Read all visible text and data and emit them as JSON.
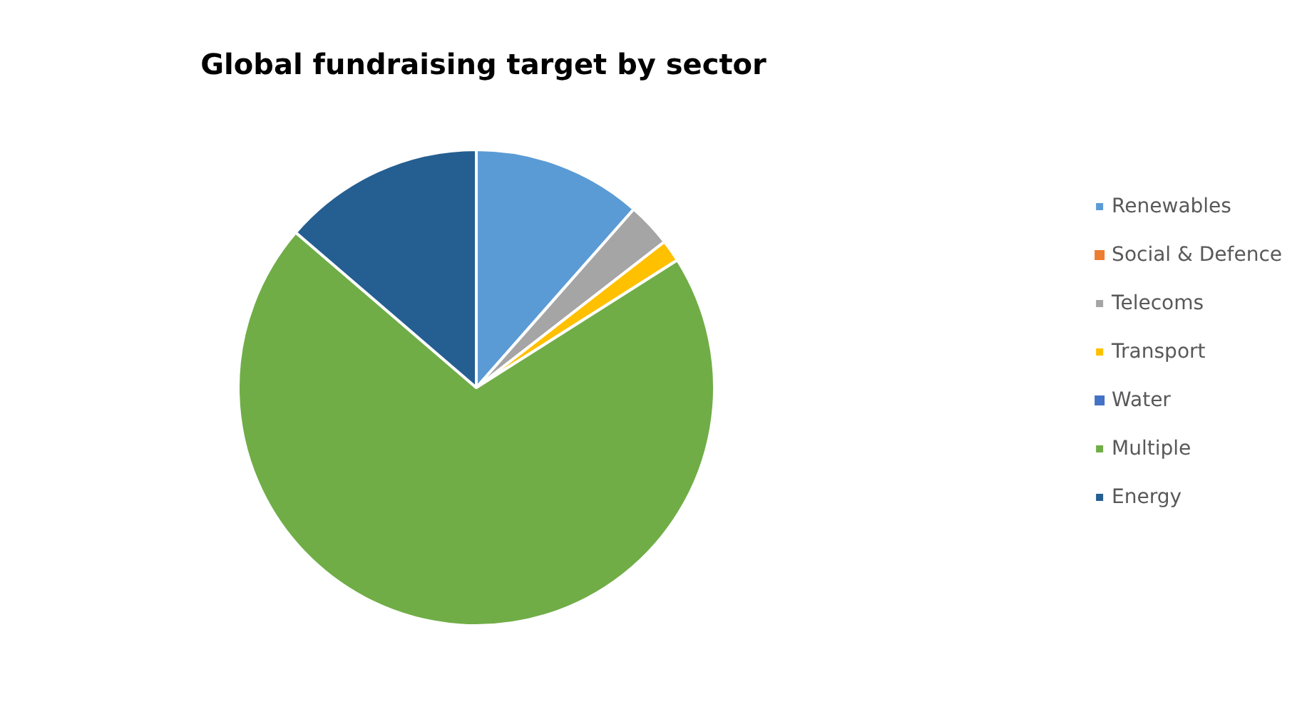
{
  "chart_data": {
    "type": "pie",
    "title": "Global fundraising target by sector",
    "categories": [
      "Renewables",
      "Social & Defence",
      "Telecoms",
      "Transport",
      "Water",
      "Multiple",
      "Energy"
    ],
    "values": [
      11.5,
      0,
      3,
      1.5,
      0,
      70.3,
      13.7
    ],
    "colors": [
      "#5b9bd5",
      "#ed7d31",
      "#a5a5a5",
      "#ffc000",
      "#4472c4",
      "#70ad47",
      "#255e91"
    ],
    "legend": "right"
  }
}
